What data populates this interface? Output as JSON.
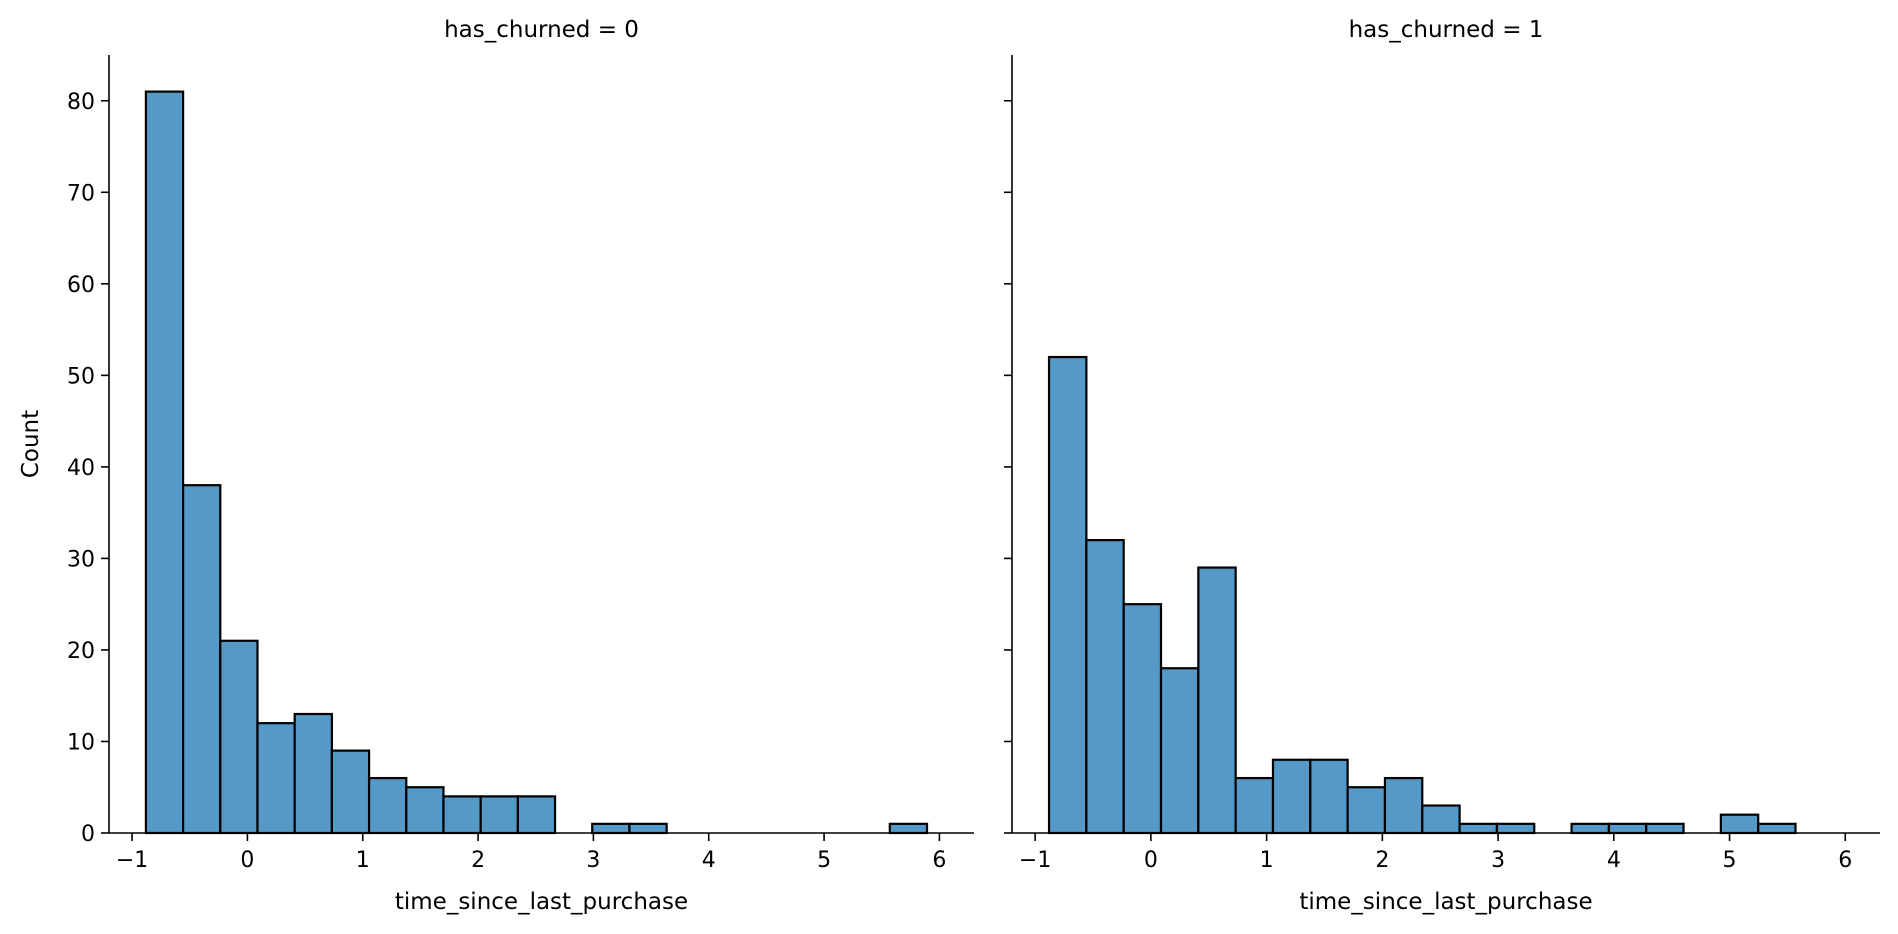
{
  "chart_data": [
    {
      "type": "bar",
      "title": "has_churned = 0",
      "xlabel": "time_since_last_purchase",
      "ylabel": "Count",
      "xlim": [
        -1.2,
        6.3
      ],
      "ylim": [
        0,
        85
      ],
      "xticks": [
        -1,
        0,
        1,
        2,
        3,
        4,
        5,
        6
      ],
      "yticks": [
        0,
        10,
        20,
        30,
        40,
        50,
        60,
        70,
        80
      ],
      "bin_start": -0.88,
      "bin_width": 0.3225,
      "values": [
        81,
        38,
        21,
        12,
        13,
        9,
        6,
        5,
        4,
        4,
        4,
        0,
        1,
        1,
        0,
        0,
        0,
        0,
        0,
        0,
        1
      ],
      "bar_color": "#5499c7",
      "edge_color": "#000000",
      "grid": false
    },
    {
      "type": "bar",
      "title": "has_churned = 1",
      "xlabel": "time_since_last_purchase",
      "ylabel": "",
      "xlim": [
        -1.2,
        6.3
      ],
      "ylim": [
        0,
        85
      ],
      "xticks": [
        -1,
        0,
        1,
        2,
        3,
        4,
        5,
        6
      ],
      "yticks": [
        0,
        10,
        20,
        30,
        40,
        50,
        60,
        70,
        80
      ],
      "bin_start": -0.88,
      "bin_width": 0.3225,
      "values": [
        52,
        32,
        25,
        18,
        29,
        6,
        8,
        8,
        5,
        6,
        3,
        1,
        1,
        0,
        1,
        1,
        1,
        0,
        2,
        1
      ],
      "bar_color": "#5499c7",
      "edge_color": "#000000",
      "grid": false
    }
  ]
}
